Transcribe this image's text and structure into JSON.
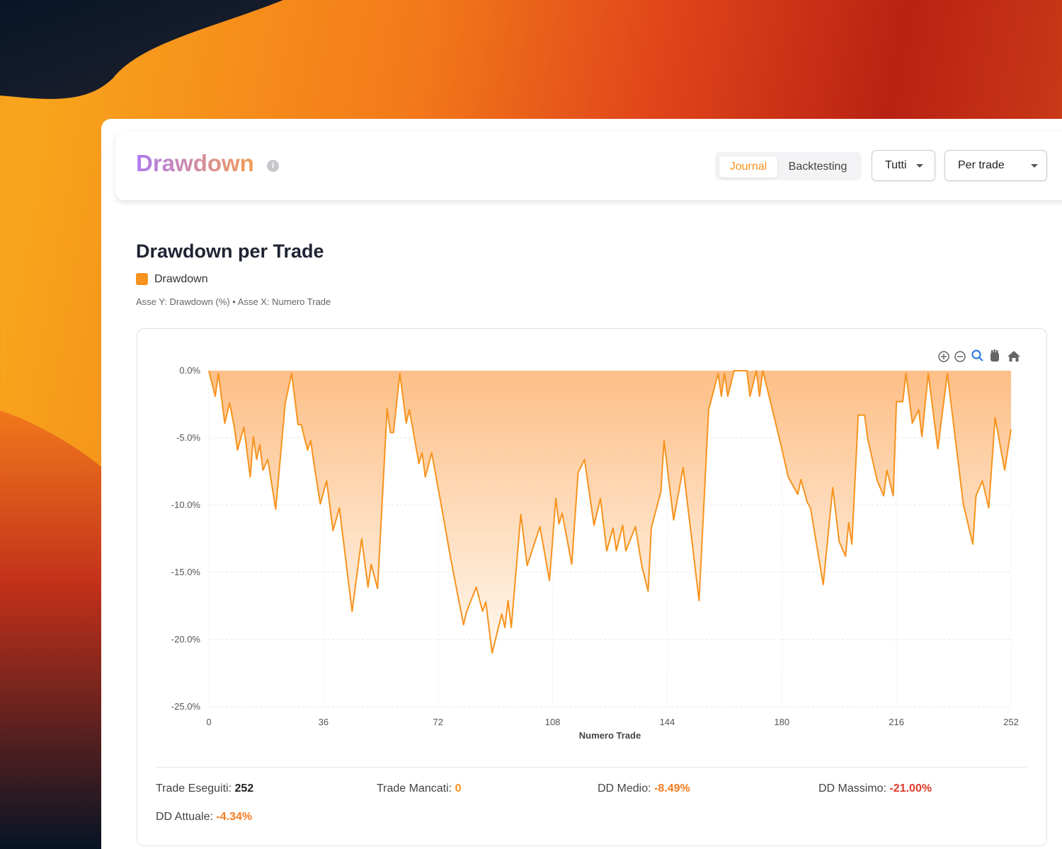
{
  "header": {
    "title": "Drawdown",
    "info": "i",
    "tabs": [
      "Journal",
      "Backtesting"
    ],
    "active_tab": 0,
    "filters": [
      "Tutti",
      "Per trade"
    ]
  },
  "chart_data": {
    "type": "area",
    "title": "Drawdown per Trade",
    "subtitle": "Asse Y: Drawdown (%) • Asse X: Numero Trade",
    "x_label": "Numero Trade",
    "grid": true,
    "x": [
      0,
      2,
      3,
      5,
      6.5,
      8,
      9,
      11,
      13,
      14,
      15,
      16,
      17,
      18.5,
      21,
      24,
      26,
      28,
      29,
      31,
      32,
      33,
      35,
      37,
      39,
      41,
      45,
      46,
      48,
      50,
      51,
      53,
      56,
      57,
      58,
      60,
      62,
      63,
      66,
      67,
      68,
      70,
      73,
      76,
      80,
      81,
      84,
      86,
      87,
      89,
      92,
      93,
      94,
      95,
      98,
      100,
      104,
      107,
      109,
      110,
      111,
      114,
      116,
      118,
      121,
      123,
      125,
      127,
      128,
      130,
      131,
      134,
      136,
      138,
      139,
      142,
      143,
      146,
      149,
      154,
      157,
      160,
      161,
      162,
      163,
      165,
      169,
      170,
      172,
      173,
      174,
      176,
      180,
      182,
      185,
      186,
      188,
      189,
      193,
      196,
      198,
      200,
      201,
      202,
      204,
      206,
      207,
      210,
      212,
      213,
      215,
      216,
      218,
      219,
      221,
      223,
      224,
      226,
      229,
      232,
      237,
      240,
      241,
      243,
      245,
      247,
      250,
      252
    ],
    "series": [
      {
        "name": "Drawdown",
        "color": "#f7931e",
        "values": [
          0,
          -1.9,
          -0.2,
          -3.9,
          -2.4,
          -4.2,
          -5.9,
          -4.2,
          -7.9,
          -4.9,
          -6.6,
          -5.5,
          -7.4,
          -6.6,
          -10.3,
          -2.4,
          -0.2,
          -4,
          -4,
          -5.9,
          -5.2,
          -6.9,
          -9.9,
          -8.2,
          -11.9,
          -10.2,
          -17.9,
          -16.1,
          -12.5,
          -16.1,
          -14.4,
          -16.2,
          -2.8,
          -4.6,
          -4.6,
          -0.2,
          -3.9,
          -2.9,
          -6.9,
          -6.1,
          -7.9,
          -6.1,
          -10,
          -14,
          -18.9,
          -17.9,
          -16.1,
          -17.9,
          -17.2,
          -21,
          -18.1,
          -19.1,
          -17.1,
          -19.1,
          -10.7,
          -14.5,
          -11.6,
          -15.6,
          -9.5,
          -11.4,
          -10.6,
          -14.4,
          -7.6,
          -6.6,
          -11.5,
          -9.5,
          -13.4,
          -11.7,
          -13.4,
          -11.5,
          -13.4,
          -11.6,
          -14.5,
          -16.4,
          -11.7,
          -9,
          -5.2,
          -11.1,
          -7.2,
          -17.1,
          -2.9,
          -0.2,
          -1.9,
          -0.2,
          -1.9,
          0,
          0,
          -1.9,
          0,
          -1.9,
          0,
          -1.9,
          -5.8,
          -7.9,
          -9.2,
          -8.1,
          -9.8,
          -10.2,
          -15.9,
          -8.7,
          -12.7,
          -13.8,
          -11.3,
          -12.9,
          -3.3,
          -3.3,
          -5.1,
          -8.2,
          -9.3,
          -7.4,
          -9.3,
          -2.3,
          -2.3,
          -0.2,
          -3.9,
          -2.9,
          -4.9,
          -0.2,
          -5.8,
          -0.2,
          -9.9,
          -12.9,
          -9.3,
          -8.2,
          -10.2,
          -3.5,
          -7.4,
          -4.34
        ]
      }
    ],
    "xlim": [
      0,
      252
    ],
    "xticks": [
      0,
      36,
      72,
      108,
      144,
      180,
      216,
      252
    ],
    "ylim": [
      -25,
      0
    ],
    "yticks": [
      {
        "value": 0,
        "label": "0.0%"
      },
      {
        "value": -5,
        "label": "-5.0%"
      },
      {
        "value": -10,
        "label": "-10.0%"
      },
      {
        "value": -15,
        "label": "-15.0%"
      },
      {
        "value": -20,
        "label": "-20.0%"
      },
      {
        "value": -25,
        "label": "-25.0%"
      }
    ]
  },
  "stats": [
    {
      "label": "Trade Eseguiti:",
      "value": "252"
    },
    {
      "label": "Trade Mancati:",
      "value": "0"
    },
    {
      "label": "DD Medio:",
      "value": "-8.49%"
    },
    {
      "label": "DD Massimo:",
      "value": "-21.00%"
    },
    {
      "label": "DD Attuale:",
      "value": "-4.34%"
    }
  ]
}
